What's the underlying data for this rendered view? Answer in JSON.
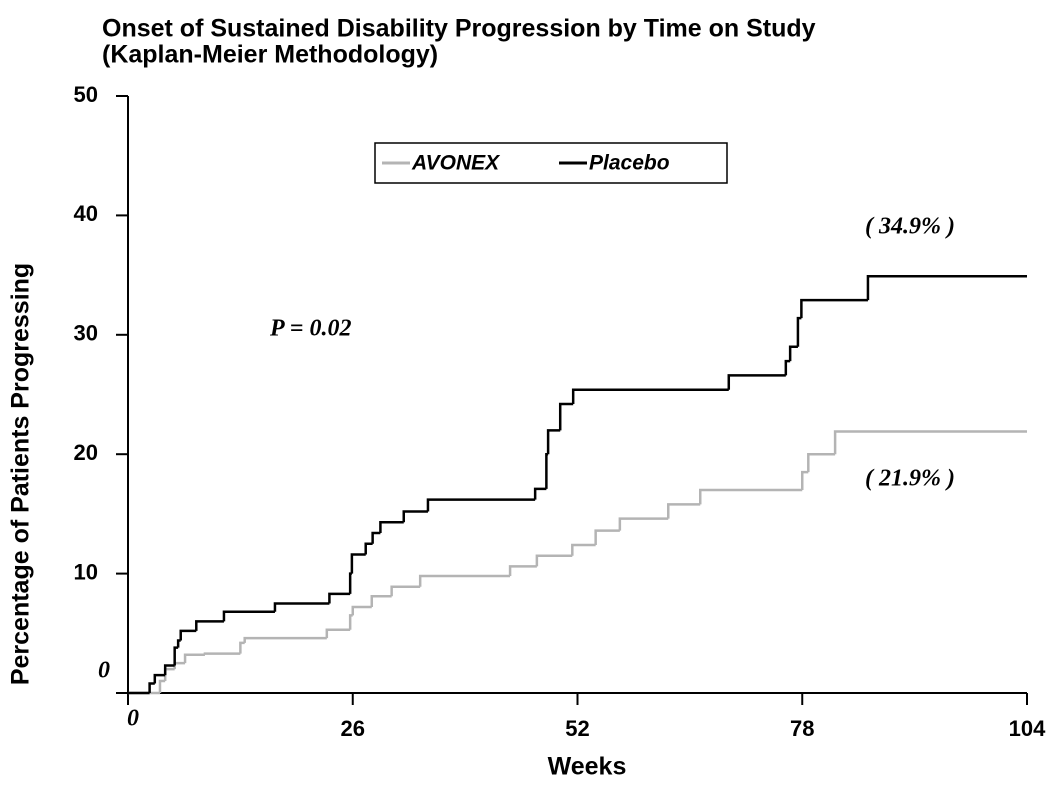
{
  "chart_data": {
    "type": "step",
    "title": [
      "Onset of Sustained Disability Progression by Time on Study",
      "(Kaplan-Meier Methodology)"
    ],
    "xlabel": "Weeks",
    "ylabel": "Percentage of Patients Progressing",
    "xlim": [
      0,
      104
    ],
    "xticks": [
      0,
      26,
      52,
      78,
      104
    ],
    "ylim": [
      0,
      50
    ],
    "yticks": [
      0,
      10,
      20,
      30,
      40,
      50
    ],
    "grid": false,
    "legend": "top",
    "annotations": [
      "P = 0.02",
      "( 34.9% )",
      "( 21.9% )"
    ],
    "series": [
      {
        "name": "AVONEX",
        "color": "#b4b4b4",
        "x": [
          0,
          3.7,
          4.3,
          5.4,
          6.6,
          8.9,
          13.0,
          13.5,
          23.0,
          25.7,
          26.0,
          28.2,
          30.5,
          33.8,
          44.2,
          47.3,
          51.4,
          54.1,
          56.9,
          62.5,
          66.2,
          78.0,
          78.7,
          81.8,
          104
        ],
        "values": [
          0,
          1.0,
          2.0,
          2.5,
          3.2,
          3.3,
          4.2,
          4.6,
          5.3,
          6.5,
          7.2,
          8.1,
          8.9,
          9.8,
          10.6,
          11.5,
          12.4,
          13.6,
          14.6,
          15.8,
          17.0,
          18.5,
          20.0,
          21.9,
          21.9
        ]
      },
      {
        "name": "Placebo",
        "color": "#000000",
        "x": [
          0,
          2.5,
          3.1,
          4.3,
          5.4,
          5.8,
          6.1,
          7.9,
          11.1,
          17.0,
          23.3,
          25.7,
          25.9,
          27.5,
          28.3,
          29.2,
          31.9,
          34.7,
          47.1,
          48.4,
          48.6,
          50.0,
          51.5,
          69.5,
          76.1,
          76.6,
          77.5,
          77.9,
          85.6,
          104
        ],
        "values": [
          0,
          0.8,
          1.5,
          2.3,
          3.8,
          4.4,
          5.2,
          6.0,
          6.8,
          7.5,
          8.3,
          10.0,
          11.6,
          12.5,
          13.4,
          14.3,
          15.2,
          16.2,
          17.1,
          20.0,
          22.0,
          24.2,
          25.4,
          26.6,
          27.8,
          29.0,
          31.4,
          32.9,
          34.9,
          34.9
        ]
      }
    ]
  }
}
